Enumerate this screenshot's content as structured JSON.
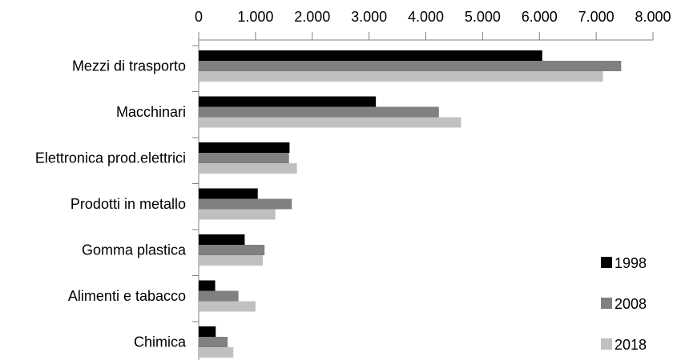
{
  "chart_data": {
    "type": "bar",
    "orientation": "horizontal",
    "title": "",
    "xlabel": "",
    "ylabel": "",
    "xlim": [
      0,
      8000
    ],
    "ticks": [
      0,
      1000,
      2000,
      3000,
      4000,
      5000,
      6000,
      7000,
      8000
    ],
    "tick_labels": [
      "0",
      "1.000",
      "2.000",
      "3.000",
      "4.000",
      "5.000",
      "6.000",
      "7.000",
      "8.000"
    ],
    "axis_position": "top",
    "grid": false,
    "legend_position": "bottom-right",
    "categories": [
      "Mezzi di trasporto",
      "Macchinari",
      "Elettronica prod.elettrici",
      "Prodotti in metallo",
      "Gomma plastica",
      "Alimenti e tabacco",
      "Chimica"
    ],
    "series": [
      {
        "name": "1998",
        "color": "#000000",
        "values": [
          6050,
          3120,
          1600,
          1040,
          810,
          290,
          300
        ]
      },
      {
        "name": "2008",
        "color": "#808080",
        "values": [
          7440,
          4230,
          1590,
          1640,
          1160,
          700,
          510
        ]
      },
      {
        "name": "2018",
        "color": "#c0c0c0",
        "values": [
          7120,
          4620,
          1730,
          1350,
          1130,
          1000,
          610
        ]
      }
    ]
  }
}
